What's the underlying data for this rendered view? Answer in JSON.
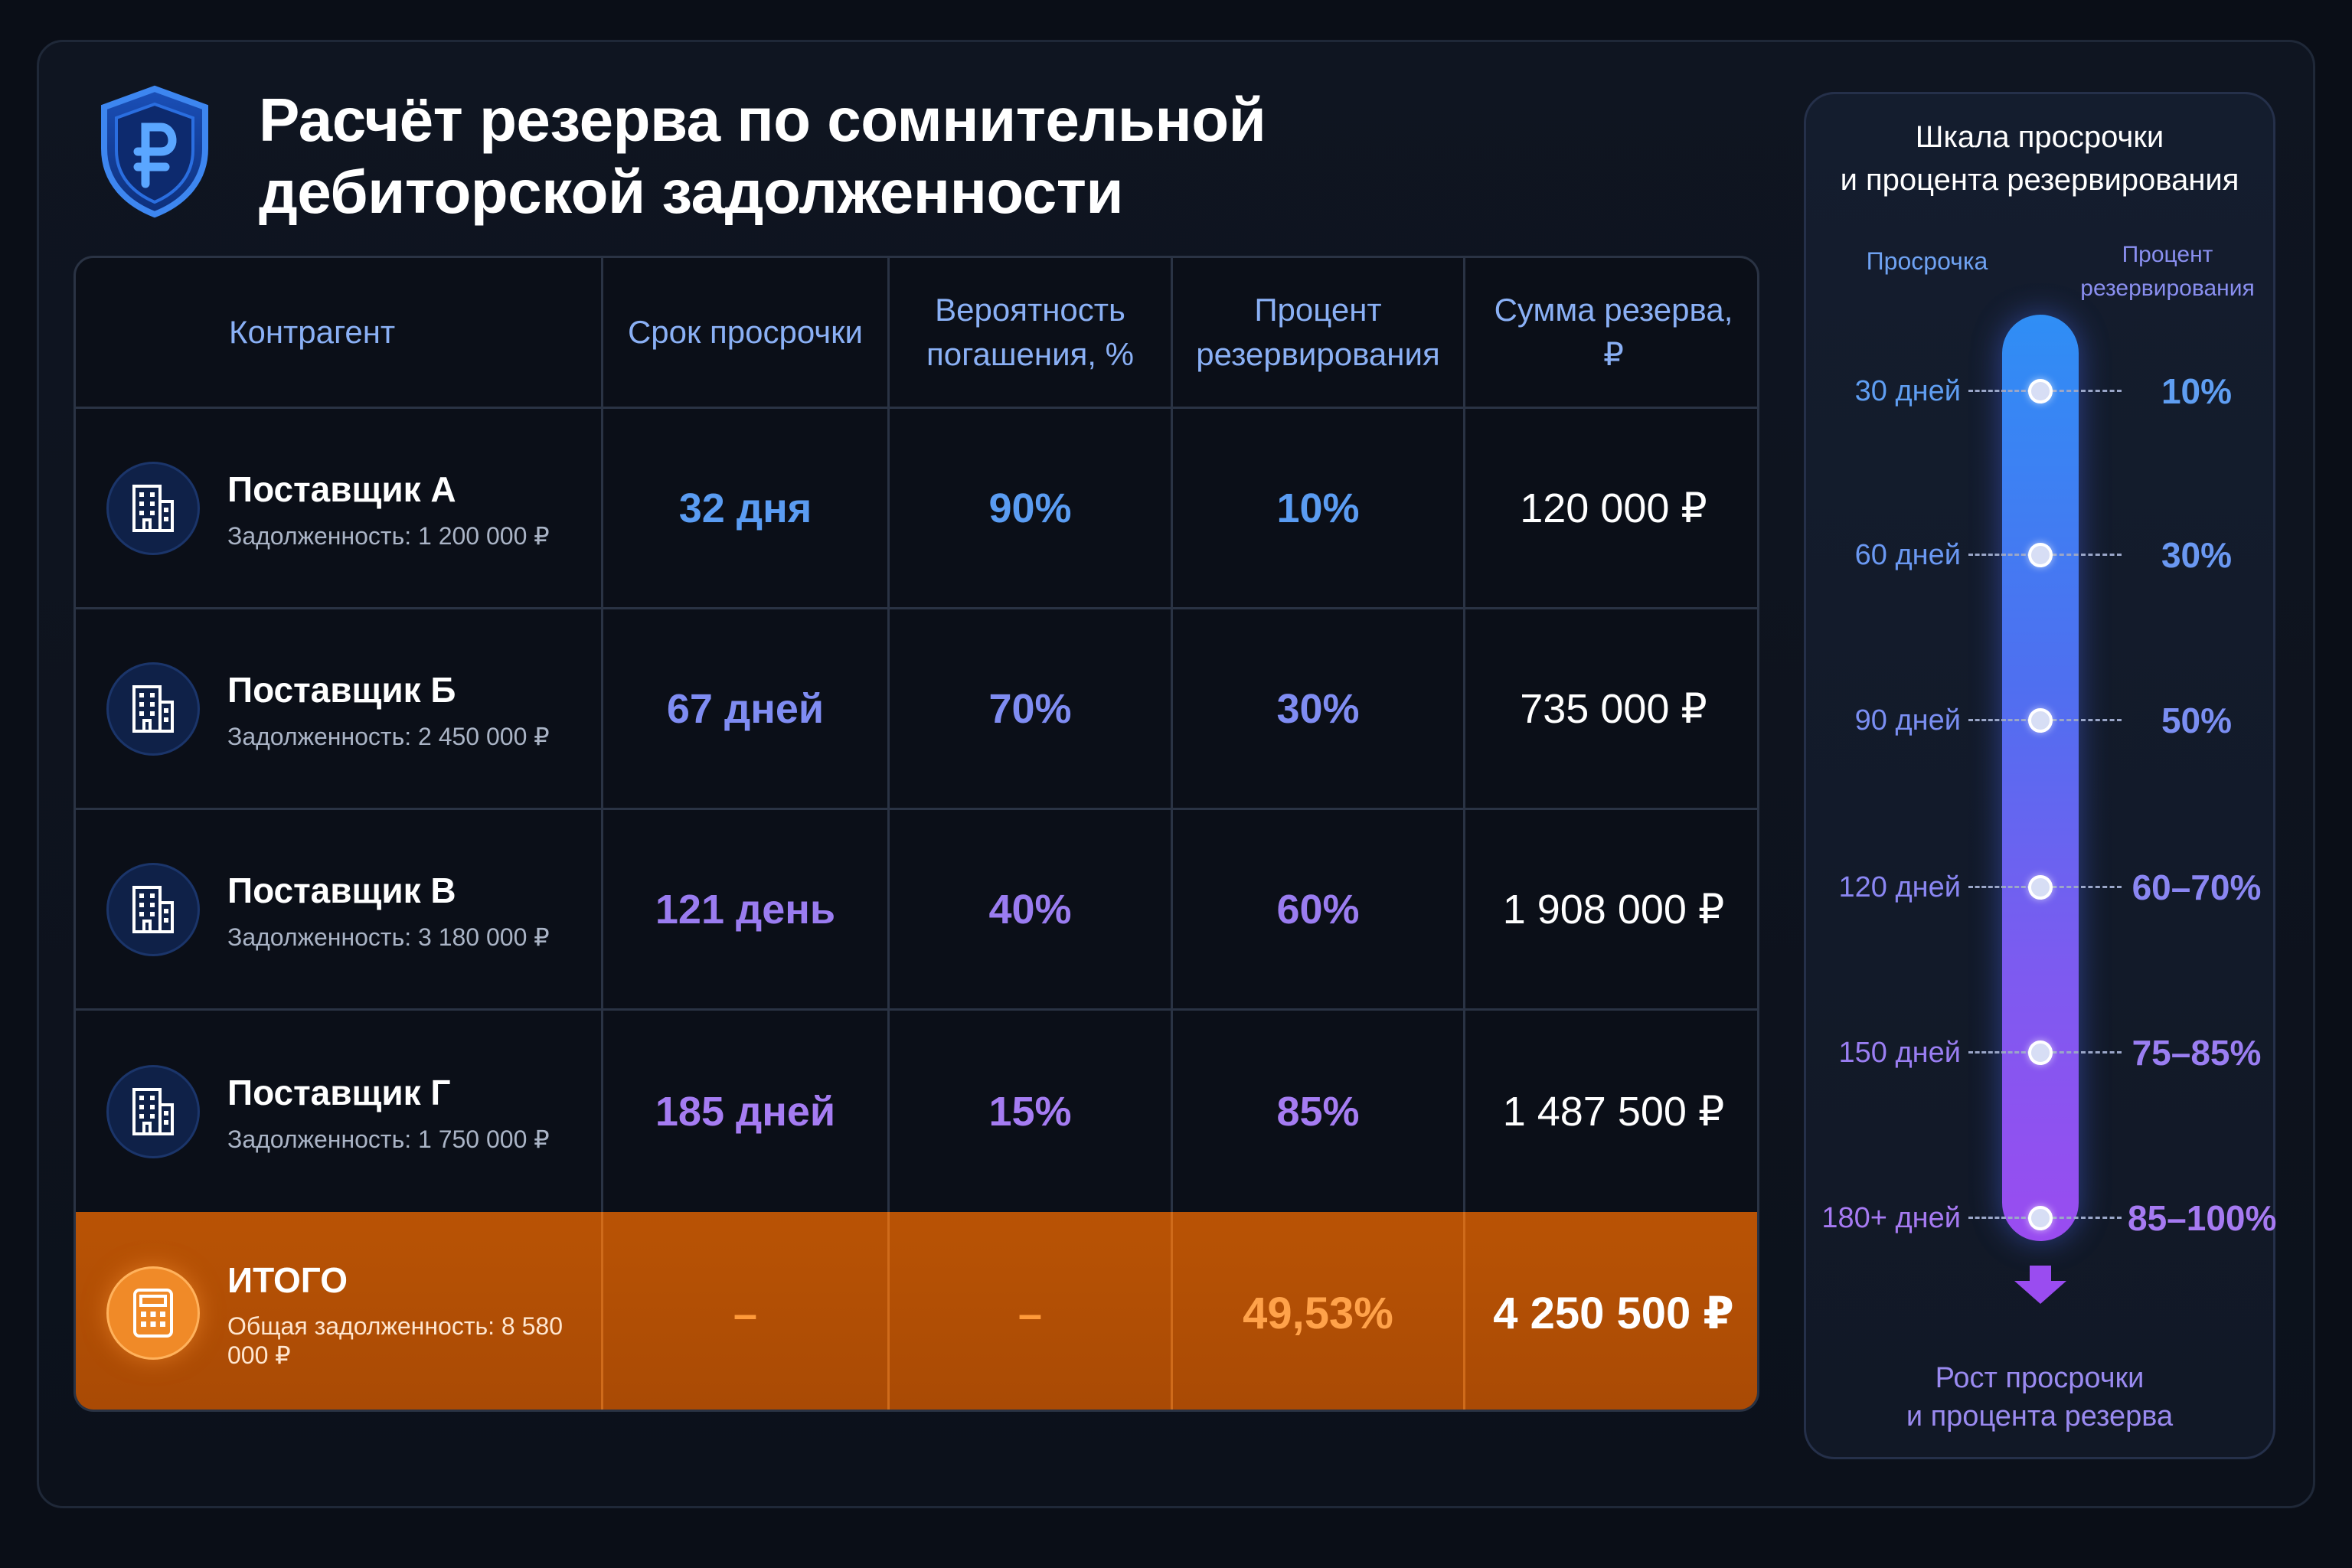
{
  "title": {
    "line1": "Расчёт резерва по сомнительной",
    "line2": "дебиторской задолженности"
  },
  "logo_icon": "ruble-shield-icon",
  "table": {
    "headers": {
      "counterparty": "Контрагент",
      "overdue": "Срок просрочки",
      "probability": "Вероятность погашения, %",
      "reserve_pct": "Процент резервирования",
      "reserve_sum": "Сумма резерва, ₽"
    },
    "rows": [
      {
        "icon": "building-icon",
        "name": "Поставщик А",
        "debt": "Задолженность: 1 200 000 ₽",
        "overdue": "32 дня",
        "probability": "90%",
        "reserve_pct": "10%",
        "reserve_sum": "120 000 ₽"
      },
      {
        "icon": "building-icon",
        "name": "Поставщик Б",
        "debt": "Задолженность: 2 450 000 ₽",
        "overdue": "67 дней",
        "probability": "70%",
        "reserve_pct": "30%",
        "reserve_sum": "735 000 ₽"
      },
      {
        "icon": "building-icon",
        "name": "Поставщик В",
        "debt": "Задолженность: 3 180 000 ₽",
        "overdue": "121 день",
        "probability": "40%",
        "reserve_pct": "60%",
        "reserve_sum": "1 908 000 ₽"
      },
      {
        "icon": "building-icon",
        "name": "Поставщик Г",
        "debt": "Задолженность: 1 750 000 ₽",
        "overdue": "185 дней",
        "probability": "15%",
        "reserve_pct": "85%",
        "reserve_sum": "1 487 500 ₽"
      }
    ],
    "total": {
      "icon": "calculator-icon",
      "name": "ИТОГО",
      "debt": "Общая задолженность: 8 580 000 ₽",
      "overdue": "–",
      "probability": "–",
      "reserve_pct": "49,53%",
      "reserve_sum": "4 250 500 ₽"
    }
  },
  "scale": {
    "title_line1": "Шкала просрочки",
    "title_line2": "и процента резервирования",
    "legend_left": "Просрочка",
    "legend_right_line1": "Процент",
    "legend_right_line2": "резервирования",
    "ticks": [
      {
        "day": "30 дней",
        "pct": "10%"
      },
      {
        "day": "60 дней",
        "pct": "30%"
      },
      {
        "day": "90 дней",
        "pct": "50%"
      },
      {
        "day": "120 дней",
        "pct": "60–70%"
      },
      {
        "day": "150 дней",
        "pct": "75–85%"
      },
      {
        "day": "180+ дней",
        "pct": "85–100%"
      }
    ],
    "footer_line1": "Рост просрочки",
    "footer_line2": "и процента резерва"
  },
  "colors": {
    "background": "#0a0e17",
    "header_text": "#8ab0f5",
    "total_row": "#b95305",
    "accent_orange": "#ffa24a",
    "bar_top": "#2f8ef5",
    "bar_bottom": "#9a4cf0"
  }
}
